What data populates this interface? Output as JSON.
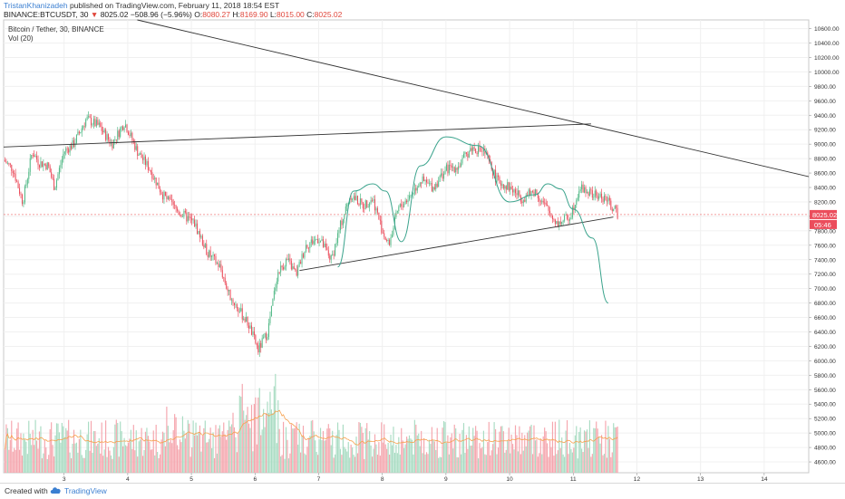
{
  "header": {
    "author": "TristanKhanizadeh",
    "published": "published on TradingView.com, February 11, 2018 18:54 EST",
    "symbol": "BINANCE:BTCUSDT, 30",
    "last": "8025.02",
    "change": "−508.96 (−5.96%)",
    "ohlc": {
      "o_label": "O:",
      "o": "8080.27",
      "h_label": "H:",
      "h": "8169.90",
      "l_label": "L:",
      "l": "8015.00",
      "c_label": "C:",
      "c": "8025.02"
    }
  },
  "pane": {
    "title": "Bitcoin / Tether, 30, BINANCE",
    "volume_label": "Vol (20)"
  },
  "footer": {
    "created": "Created with",
    "brand": "TradingView"
  },
  "price_tags": {
    "price": "8025.02",
    "countdown": "05:46"
  },
  "colors": {
    "up": "#53b987",
    "down": "#eb4d5c",
    "vol_up": "#a9dcc3",
    "vol_down": "#f5a6ae",
    "ma": "#f6a04d",
    "curve": "#3aa38c",
    "line": "#333333",
    "price_line": "#f08080",
    "tag": "#eb4d5c"
  },
  "chart_data": {
    "type": "candlestick",
    "title": "Bitcoin / Tether, 30, BINANCE",
    "x_ticks": [
      "3",
      "4",
      "5",
      "6",
      "7",
      "8",
      "9",
      "10",
      "11",
      "12",
      "13",
      "14"
    ],
    "y_ticks": [
      4600,
      4800,
      5000,
      5200,
      5400,
      5600,
      5800,
      6000,
      6200,
      6400,
      6600,
      6800,
      7000,
      7200,
      7400,
      7600,
      7800,
      8000,
      8200,
      8400,
      8600,
      8800,
      9000,
      9200,
      9400,
      9600,
      9800,
      10000,
      10200,
      10400,
      10600
    ],
    "y_tick_labels": [
      "4600.00",
      "4800.00",
      "5000.00",
      "5200.00",
      "5400.00",
      "5600.00",
      "5800.00",
      "6000.00",
      "6200.00",
      "6400.00",
      "6600.00",
      "6800.00",
      "7000.00",
      "7200.00",
      "7400.00",
      "7600.00",
      "7800.00",
      "8000.00",
      "8200.00",
      "8400.00",
      "8600.00",
      "8800.00",
      "9000.00",
      "9200.00",
      "9400.00",
      "9600.00",
      "9800.00",
      "10000.00",
      "10200.00",
      "10400.00",
      "10600.00"
    ],
    "x_range_days": [
      2.05,
      14.7
    ],
    "y_range": [
      4450,
      10720
    ],
    "price_path": [
      [
        2.05,
        8780
      ],
      [
        2.2,
        8650
      ],
      [
        2.35,
        8200
      ],
      [
        2.5,
        8900
      ],
      [
        2.6,
        8750
      ],
      [
        2.75,
        8700
      ],
      [
        2.85,
        8400
      ],
      [
        3.0,
        8900
      ],
      [
        3.15,
        9000
      ],
      [
        3.35,
        9350
      ],
      [
        3.55,
        9250
      ],
      [
        3.75,
        9000
      ],
      [
        3.95,
        9300
      ],
      [
        4.15,
        8900
      ],
      [
        4.35,
        8650
      ],
      [
        4.55,
        8300
      ],
      [
        4.75,
        8100
      ],
      [
        4.9,
        8000
      ],
      [
        5.05,
        7900
      ],
      [
        5.25,
        7500
      ],
      [
        5.45,
        7300
      ],
      [
        5.6,
        6900
      ],
      [
        5.75,
        6700
      ],
      [
        5.9,
        6500
      ],
      [
        6.05,
        6150
      ],
      [
        6.2,
        6400
      ],
      [
        6.35,
        7200
      ],
      [
        6.5,
        7400
      ],
      [
        6.65,
        7200
      ],
      [
        6.8,
        7600
      ],
      [
        7.0,
        7700
      ],
      [
        7.2,
        7400
      ],
      [
        7.35,
        7900
      ],
      [
        7.5,
        8300
      ],
      [
        7.7,
        8150
      ],
      [
        7.85,
        8250
      ],
      [
        8.0,
        7800
      ],
      [
        8.1,
        7600
      ],
      [
        8.25,
        8100
      ],
      [
        8.45,
        8300
      ],
      [
        8.6,
        8500
      ],
      [
        8.8,
        8400
      ],
      [
        9.0,
        8650
      ],
      [
        9.2,
        8700
      ],
      [
        9.4,
        8950
      ],
      [
        9.6,
        8900
      ],
      [
        9.8,
        8500
      ],
      [
        10.0,
        8400
      ],
      [
        10.2,
        8250
      ],
      [
        10.4,
        8350
      ],
      [
        10.55,
        8150
      ],
      [
        10.75,
        7900
      ],
      [
        10.95,
        8000
      ],
      [
        11.1,
        8400
      ],
      [
        11.3,
        8300
      ],
      [
        11.5,
        8250
      ],
      [
        11.7,
        8025
      ]
    ],
    "volume_scale": [
      0,
      1
    ],
    "volume_ma_period": 20,
    "annotations": [
      {
        "kind": "trendline",
        "points": [
          [
            2.05,
            8960
          ],
          [
            11.28,
            9280
          ]
        ]
      },
      {
        "kind": "trendline",
        "points": [
          [
            4.15,
            10800
          ],
          [
            14.7,
            8550
          ]
        ]
      },
      {
        "kind": "trendline",
        "points": [
          [
            6.7,
            7250
          ],
          [
            11.63,
            7990
          ]
        ]
      },
      {
        "kind": "curve",
        "points": [
          [
            7.3,
            7300
          ],
          [
            7.55,
            8350
          ],
          [
            7.85,
            8450
          ],
          [
            8.05,
            8350
          ],
          [
            8.3,
            7650
          ]
        ]
      },
      {
        "kind": "curve",
        "points": [
          [
            8.3,
            7650
          ],
          [
            8.6,
            8700
          ],
          [
            9.0,
            9100
          ],
          [
            9.5,
            8980
          ],
          [
            10.0,
            8200
          ]
        ]
      },
      {
        "kind": "curve",
        "points": [
          [
            10.0,
            8200
          ],
          [
            10.4,
            8300
          ],
          [
            10.6,
            8450
          ],
          [
            10.8,
            8380
          ],
          [
            11.0,
            8100
          ],
          [
            11.3,
            7700
          ],
          [
            11.55,
            6800
          ]
        ]
      }
    ],
    "last_price": 8025.02
  }
}
